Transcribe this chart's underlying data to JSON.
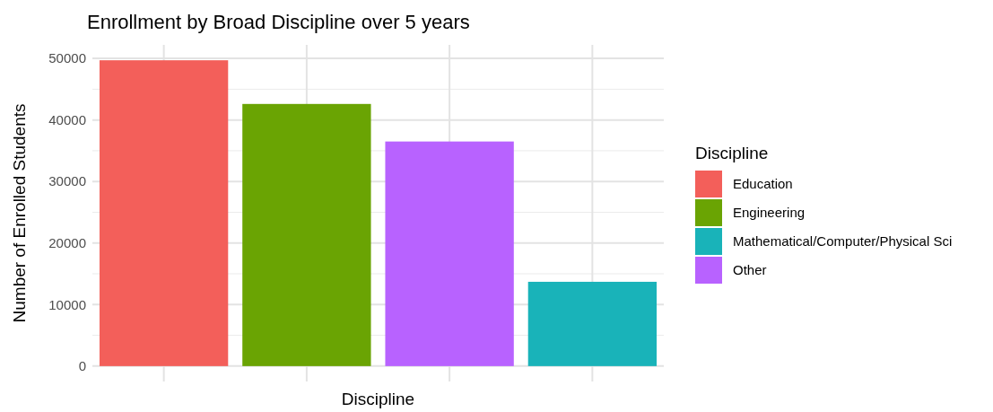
{
  "chart_data": {
    "type": "bar",
    "title": "Enrollment by Broad Discipline over 5 years",
    "xlabel": "Discipline",
    "ylabel": "Number of Enrolled Students",
    "legend_title": "Discipline",
    "categories": [
      null,
      null,
      null,
      null
    ],
    "series": [
      {
        "name": "Education",
        "color": "#f35f5a",
        "values": [
          49700,
          null,
          null,
          null
        ]
      },
      {
        "name": "Engineering",
        "color": "#6aa403",
        "values": [
          null,
          42600,
          null,
          null
        ]
      },
      {
        "name": "Mathematical/Computer/Physical Sci",
        "color": "#19b3b9",
        "values": [
          null,
          null,
          null,
          13700
        ]
      },
      {
        "name": "Other",
        "color": "#b862ff",
        "values": [
          null,
          null,
          36500,
          null
        ]
      }
    ],
    "ylim": [
      -2500,
      52200
    ],
    "yticks": [
      0,
      10000,
      20000,
      30000,
      40000,
      50000
    ],
    "grid": true,
    "legend": "right"
  }
}
